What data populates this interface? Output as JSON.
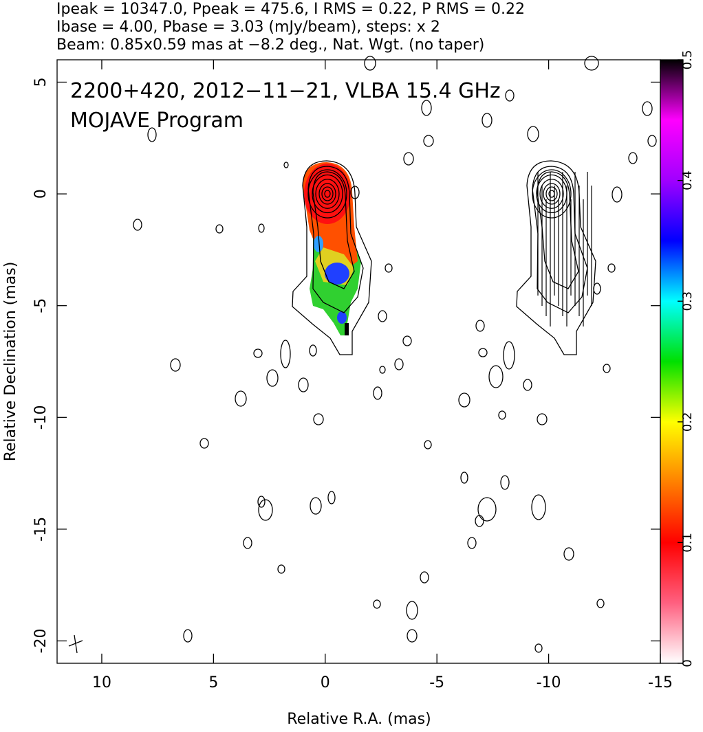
{
  "chart_data": {
    "type": "contour-map",
    "header_lines": [
      "Ipeak = 10347.0, Ppeak = 475.6, I RMS = 0.22, P RMS = 0.22",
      "Ibase = 4.00, Pbase = 3.03 (mJy/beam), steps: x 2",
      "Beam: 0.85x0.59 mas at −8.2 deg., Nat. Wgt. (no taper)"
    ],
    "annotations": [
      "2200+420, 2012−11−21, VLBA 15.4 GHz",
      "MOJAVE Program"
    ],
    "x_label": "Relative R.A. (mas)",
    "y_label": "Relative Declination (mas)",
    "xlim": [
      12,
      -15
    ],
    "xticks": [
      10,
      5,
      0,
      -5,
      -10,
      -15
    ],
    "ylim": [
      -21,
      6
    ],
    "yticks": [
      5,
      0,
      -5,
      -10,
      -15,
      -20
    ],
    "colorbar": {
      "lim": [
        0,
        0.5
      ],
      "ticks": [
        0,
        0.1,
        0.2,
        0.3,
        0.4,
        0.5
      ],
      "colors": [
        "#ffffff",
        "#ff6080",
        "#ff0000",
        "#ff8000",
        "#ffff00",
        "#00e000",
        "#00ffff",
        "#0000ff",
        "#a000ff",
        "#ff00ff",
        "#000000"
      ]
    }
  }
}
